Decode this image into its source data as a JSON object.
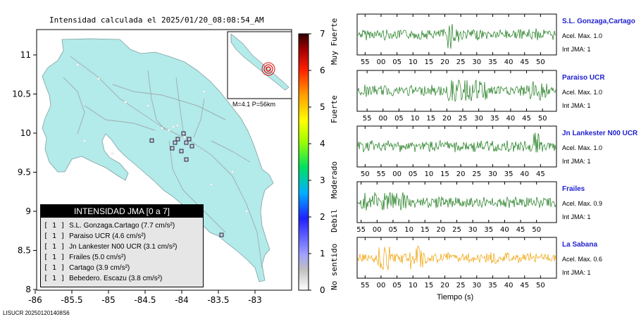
{
  "map": {
    "title": "Intensidad calculada el 2025/01/20_08:08:54_AM",
    "note": "M=4.1 P=56km",
    "footer": "LISUCR 202501201408S6",
    "y_ticks": [
      "11",
      "10.5",
      "10",
      "9.5",
      "9",
      "8.5",
      "8"
    ],
    "x_ticks": [
      "-86",
      "-85.5",
      "-85",
      "-84.5",
      "-84",
      "-83.5",
      "-83"
    ],
    "colors": {
      "land": "#b3eaea",
      "sea": "#ffffff",
      "roads": "#9a9a9a",
      "epicenter": "#e01010"
    }
  },
  "colorbar": {
    "ticks": [
      "7",
      "6",
      "5",
      "4",
      "3",
      "2",
      "1",
      "0"
    ],
    "labels": [
      "Muy Fuerte",
      "Fuerte",
      "Moderado",
      "Debil",
      "No sentido"
    ]
  },
  "legend": {
    "title": "INTENSIDAD JMA [0 a 7]",
    "rows": [
      {
        "int": "[ 1 ]",
        "text": "S.L. Gonzaga.Cartago (7.7 cm/s²)"
      },
      {
        "int": "[ 1 ]",
        "text": "Paraiso UCR (4.6 cm/s²)"
      },
      {
        "int": "[ 1 ]",
        "text": "Jn Lankester N00 UCR (3.1 cm/s²)"
      },
      {
        "int": "[ 1 ]",
        "text": "Frailes (5.0 cm/s²)"
      },
      {
        "int": "[ 1 ]",
        "text": "Cartago (3.9 cm/s²)"
      },
      {
        "int": "[ 1 ]",
        "text": "Bebedero. Escazu (3.8 cm/s²)"
      }
    ]
  },
  "waveforms": {
    "xlabel": "Tiempo (s)",
    "stations": [
      {
        "name": "S.L. Gonzaga,Cartago",
        "acel": "Acel. Max. 1.0",
        "int": "Int JMA: 1",
        "color": "#1a7a1a",
        "ticks": [
          "55",
          "00",
          "05",
          "10",
          "15",
          "20",
          "25",
          "30",
          "35",
          "40",
          "45",
          "50"
        ],
        "first_tick_frac": 0.04
      },
      {
        "name": "Paraiso UCR",
        "acel": "Acel. Max. 1.0",
        "int": "Int JMA: 1",
        "color": "#1a7a1a",
        "ticks": [
          "55",
          "00",
          "05",
          "10",
          "15",
          "20",
          "25",
          "30",
          "35",
          "40",
          "45",
          "50"
        ],
        "first_tick_frac": 0.05
      },
      {
        "name": "Jn Lankester N00 UCR",
        "acel": "Acel. Max. 1.0",
        "int": "Int JMA: 1",
        "color": "#1a7a1a",
        "ticks": [
          "50",
          "55",
          "00",
          "05",
          "10",
          "15",
          "20",
          "25",
          "30",
          "35",
          "40",
          "45"
        ],
        "first_tick_frac": 0.04
      },
      {
        "name": "Frailes",
        "acel": "Acel. Max. 0.9",
        "int": "Int JMA: 1",
        "color": "#1a7a1a",
        "ticks": [
          "55",
          "00",
          "05",
          "10",
          "15",
          "20",
          "25",
          "30",
          "35",
          "40",
          "45",
          "50"
        ],
        "first_tick_frac": 0.02
      },
      {
        "name": "La Sabana",
        "acel": "Acel. Max. 0.6",
        "int": "Int JMA: 1",
        "color": "#f0a000",
        "ticks": [
          "55",
          "00",
          "05",
          "10",
          "15",
          "20",
          "25",
          "30",
          "35",
          "40",
          "45",
          "50"
        ],
        "first_tick_frac": 0.04
      }
    ]
  }
}
